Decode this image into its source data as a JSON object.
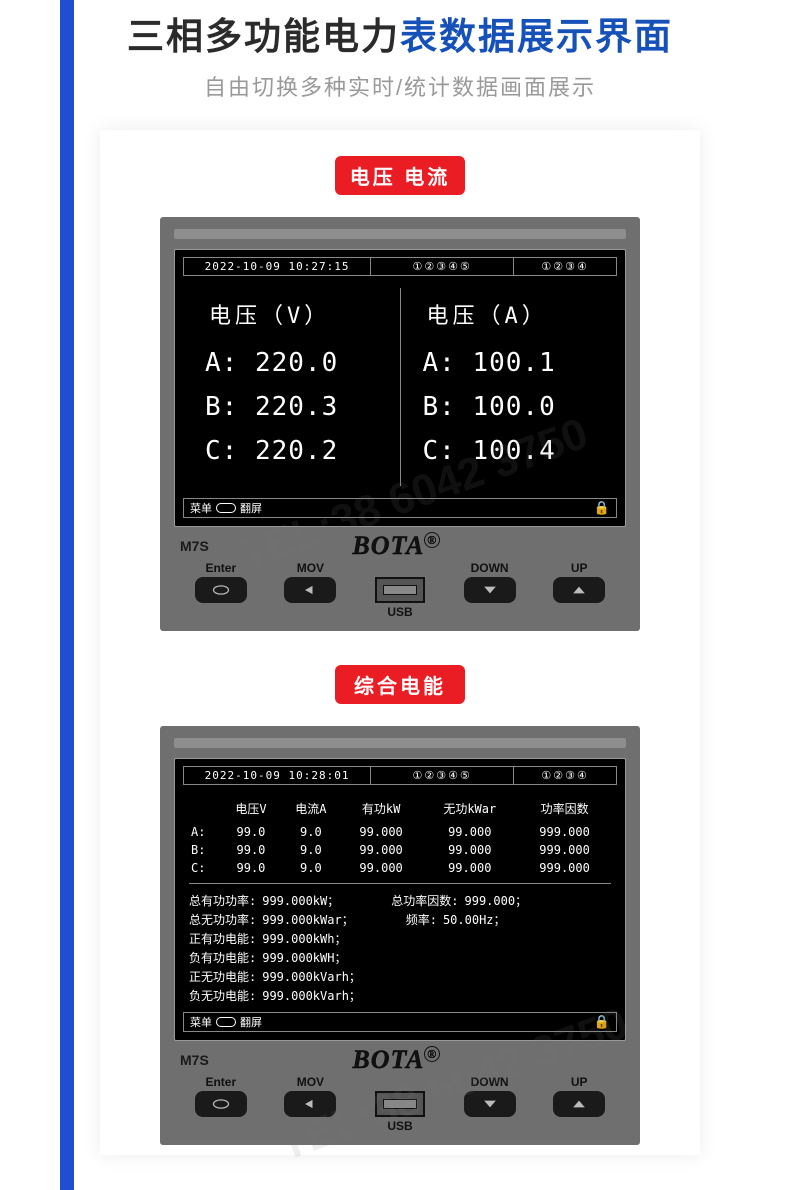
{
  "colors": {
    "accent_red": "#ea1c24",
    "accent_blue": "#1551b8",
    "stripe_blue": "#1f4fd0",
    "device_grey": "#6f6f6f",
    "screen_black": "#000000",
    "border_grey": "#888888",
    "sub_grey": "#999999"
  },
  "header": {
    "title_pre": "三相多功能电力",
    "title_hl": "表数据展示界面",
    "subtitle": "自由切换多种实时/统计数据画面展示",
    "title_fontsize": 37,
    "subtitle_fontsize": 22
  },
  "watermark_text": "TEL:38 6042 3750",
  "badge1": "电压 电流",
  "badge2": "综合电能",
  "meter": {
    "model": "M7S",
    "brand": "BOTA",
    "controls": {
      "enter": "Enter",
      "mov": "MOV",
      "down": "DOWN",
      "up": "UP",
      "usb": "USB"
    },
    "footer_menu": "菜单",
    "footer_flip": "翻屏",
    "status_indicator_5": "①②③④⑤",
    "status_indicator_4": "①②③④"
  },
  "screen1": {
    "datetime": "2022-10-09 10:27:15",
    "left_title": "电压（V）",
    "right_title": "电压（A）",
    "left": {
      "A": "220.0",
      "B": "220.3",
      "C": "220.2"
    },
    "right": {
      "A": "100.1",
      "B": "100.0",
      "C": "100.4"
    },
    "value_fontsize": 26
  },
  "screen2": {
    "datetime": "2022-10-09 10:28:01",
    "columns": [
      "电压V",
      "电流A",
      "有功kW",
      "无功kWar",
      "功率因数"
    ],
    "rows": [
      {
        "phase": "A:",
        "v": "99.0",
        "i": "9.0",
        "p": "99.000",
        "q": "99.000",
        "pf": "999.000"
      },
      {
        "phase": "B:",
        "v": "99.0",
        "i": "9.0",
        "p": "99.000",
        "q": "99.000",
        "pf": "999.000"
      },
      {
        "phase": "C:",
        "v": "99.0",
        "i": "9.0",
        "p": "99.000",
        "q": "99.000",
        "pf": "999.000"
      }
    ],
    "summary": {
      "total_p_label": "总有功功率:",
      "total_p": "999.000kW；",
      "total_pf_label": "总功率因数:",
      "total_pf": "999.000；",
      "total_q_label": "总无功功率:",
      "total_q": "999.000kWar；",
      "freq_label": "频率:",
      "freq": "50.00Hz；",
      "pos_pe_label": "正有功电能:",
      "pos_pe": "999.000kWh；",
      "neg_pe_label": "负有功电能:",
      "neg_pe": "999.000kWH；",
      "pos_qe_label": "正无功电能:",
      "pos_qe": "999.000kVarh；",
      "neg_qe_label": "负无功电能:",
      "neg_qe": "999.000kVarh；"
    }
  }
}
